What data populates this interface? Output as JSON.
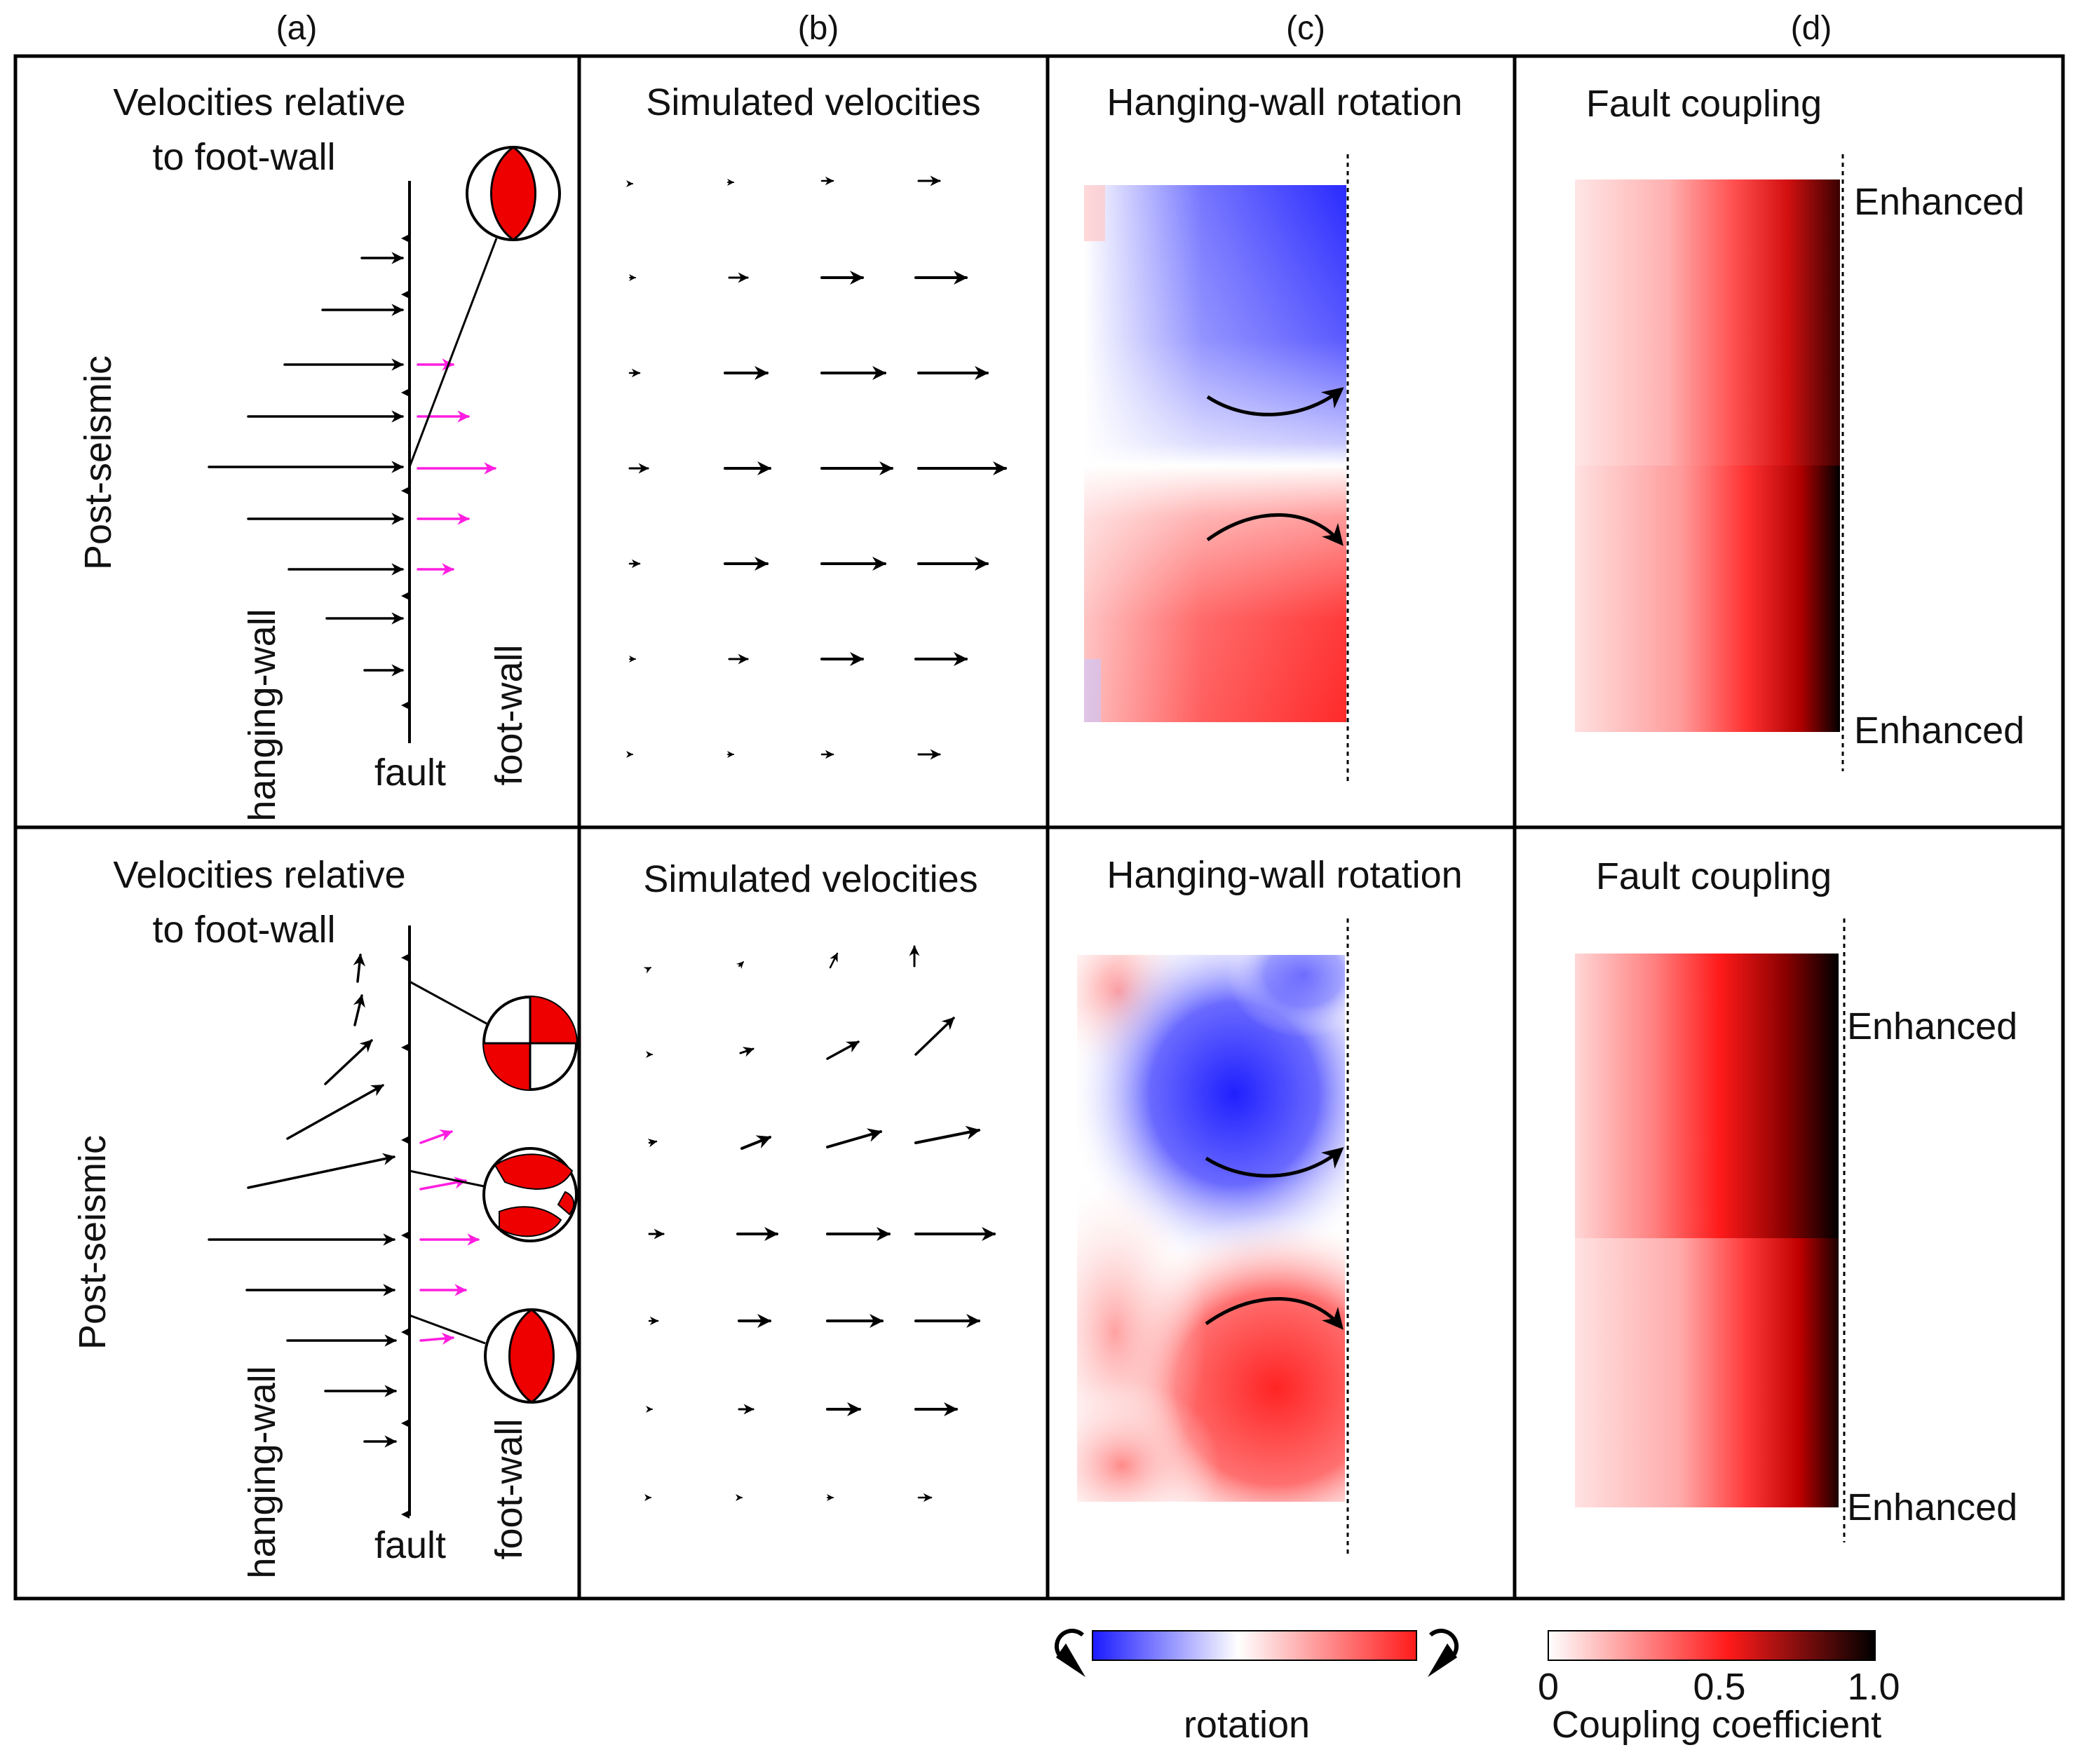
{
  "columns": [
    "(a)",
    "(b)",
    "(c)",
    "(d)"
  ],
  "row_labels": [
    "Post-seismic",
    "Post-seismic"
  ],
  "panel_a": {
    "title_line1": "Velocities relative",
    "title_line2": "to foot-wall",
    "hanging_wall": "hanging-wall",
    "foot_wall": "foot-wall",
    "fault": "fault"
  },
  "panel_b": {
    "title": "Simulated velocities"
  },
  "panel_c": {
    "title": "Hanging-wall rotation"
  },
  "panel_d": {
    "title": "Fault coupling",
    "enhanced_top": "Enhanced",
    "enhanced_bottom": "Enhanced"
  },
  "legend_rotation": {
    "label": "rotation",
    "colors": [
      "#2020ff",
      "#ffffff",
      "#ff2020"
    ]
  },
  "legend_coupling": {
    "label": "Coupling coefficient",
    "ticks": [
      "0",
      "0.5",
      "1.0"
    ],
    "colors": [
      "#ffffff",
      "#ff1a1a",
      "#000000"
    ]
  },
  "vectors": {
    "rowA_fault_black": [
      0.25,
      0.4,
      0.55,
      0.72,
      0.95,
      0.72,
      0.55,
      0.4,
      0.25
    ],
    "rowA_fault_magenta": [
      0.25,
      0.4,
      0.6,
      0.4,
      0.25
    ],
    "rowA_simulated": [
      [
        0.01,
        0.02,
        0.06,
        0.12
      ],
      [
        0.02,
        0.14,
        0.32,
        0.38
      ],
      [
        0.05,
        0.32,
        0.5,
        0.56
      ],
      [
        0.1,
        0.4,
        0.58,
        0.72
      ],
      [
        0.05,
        0.32,
        0.5,
        0.56
      ],
      [
        0.02,
        0.14,
        0.32,
        0.38
      ],
      [
        0.01,
        0.02,
        0.06,
        0.12
      ]
    ]
  }
}
